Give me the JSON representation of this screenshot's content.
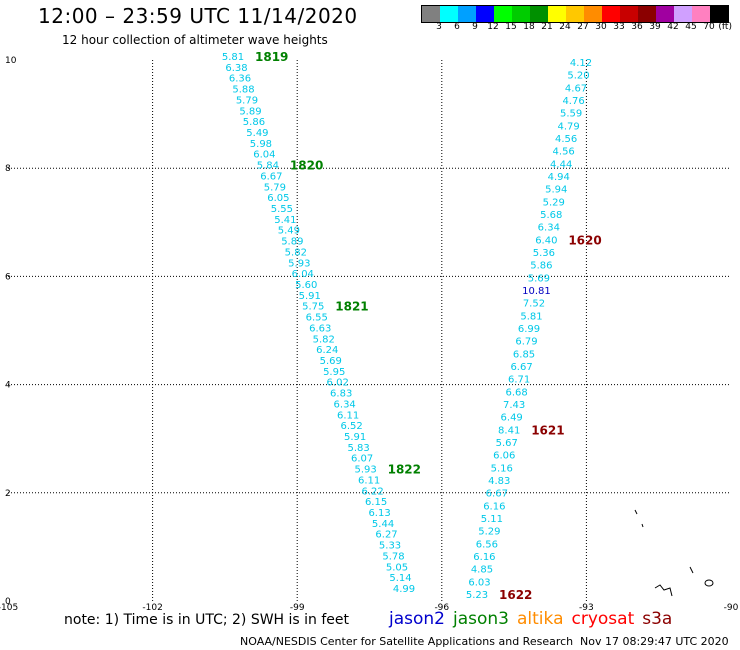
{
  "header": {
    "title": "12:00 – 23:59 UTC 11/14/2020",
    "subtitle": "12 hour collection of altimeter wave heights"
  },
  "colorbar": {
    "colors": [
      "#808080",
      "#00ffff",
      "#00a0ff",
      "#0000ff",
      "#00ff00",
      "#00cc00",
      "#009000",
      "#ffff00",
      "#ffc800",
      "#ff8c00",
      "#ff0000",
      "#c80000",
      "#8b0000",
      "#a000a0",
      "#d0a0ff",
      "#ff80c0",
      "#000000"
    ],
    "labels": [
      "3",
      "6",
      "9",
      "12",
      "15",
      "18",
      "21",
      "24",
      "27",
      "30",
      "33",
      "36",
      "39",
      "42",
      "45",
      "70",
      "(ft)"
    ]
  },
  "map": {
    "x_ticks": [
      "-105",
      "-102",
      "-99",
      "-96",
      "-93",
      "-90"
    ],
    "y_ticks": [
      "0",
      "2",
      "4",
      "6",
      "8",
      "10"
    ],
    "value_color": "#00c8e8",
    "high_value_color": "#0000c0",
    "track_a": {
      "values": [
        "5.81",
        "6.38",
        "6.36",
        "5.88",
        "5.79",
        "5.89",
        "5.86",
        "5.49",
        "5.98",
        "6.04",
        "5.84",
        "6.67",
        "5.79",
        "6.05",
        "5.55",
        "5.41",
        "5.49",
        "5.89",
        "5.82",
        "5.93",
        "6.04",
        "5.60",
        "5.91",
        "5.75",
        "6.55",
        "6.63",
        "5.82",
        "6.24",
        "5.69",
        "5.95",
        "6.02",
        "6.83",
        "6.34",
        "6.11",
        "6.52",
        "5.91",
        "5.83",
        "6.07",
        "5.93",
        "6.11",
        "6.22",
        "6.15",
        "6.13",
        "5.44",
        "6.27",
        "5.33",
        "5.78",
        "5.05",
        "5.14",
        "4.99"
      ],
      "time_labels": [
        {
          "text": "1819",
          "index": 0,
          "color": "#008000"
        },
        {
          "text": "1820",
          "index": 10,
          "color": "#008000"
        },
        {
          "text": "1821",
          "index": 23,
          "color": "#008000"
        },
        {
          "text": "1822",
          "index": 38,
          "color": "#008000"
        }
      ]
    },
    "track_b": {
      "values": [
        "4.12",
        "5.20",
        "4.67",
        "4.76",
        "5.59",
        "4.79",
        "4.56",
        "4.56",
        "4.44",
        "4.94",
        "5.94",
        "5.29",
        "5.68",
        "6.34",
        "6.40",
        "5.36",
        "5.86",
        "5.69",
        "10.81",
        "7.52",
        "5.81",
        "6.99",
        "6.79",
        "6.85",
        "6.67",
        "6.71",
        "6.68",
        "7.43",
        "6.49",
        "8.41",
        "5.67",
        "6.06",
        "5.16",
        "4.83",
        "6.67",
        "6.16",
        "5.11",
        "5.29",
        "6.56",
        "6.16",
        "4.85",
        "6.03",
        "5.23"
      ],
      "time_labels": [
        {
          "text": "1620",
          "index": 14,
          "color": "#8b0000"
        },
        {
          "text": "1621",
          "index": 29,
          "color": "#8b0000"
        },
        {
          "text": "1622",
          "index": 42,
          "color": "#8b0000"
        }
      ]
    }
  },
  "note": "note: 1) Time is in UTC; 2) SWH is in feet",
  "legend": [
    {
      "label": "jason2",
      "color": "#0000cc"
    },
    {
      "label": "jason3",
      "color": "#008000"
    },
    {
      "label": "altika",
      "color": "#ff8c00"
    },
    {
      "label": "cryosat",
      "color": "#ff0000"
    },
    {
      "label": "s3a",
      "color": "#8b0000"
    }
  ],
  "footer": {
    "credit": "NOAA/NESDIS Center for Satellite Applications and Research",
    "timestamp": "Nov 17 08:29:47 UTC 2020"
  }
}
